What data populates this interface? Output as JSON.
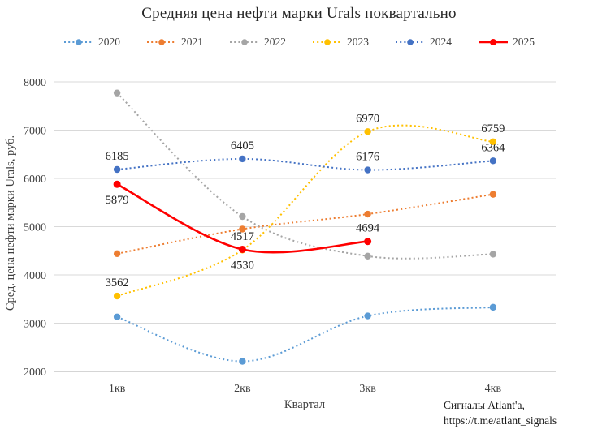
{
  "source": {
    "line1": "Сигналы Atlant'a,",
    "line2": "https://t.me/atlant_signals"
  },
  "chart_data": {
    "type": "line",
    "title": "Средняя цена нефти марки Urals поквартально",
    "xlabel": "Квартал",
    "ylabel": "Сред. цена нефти марки Urals, руб.",
    "categories": [
      "1кв",
      "2кв",
      "3кв",
      "4кв"
    ],
    "ylim": [
      2000,
      8000
    ],
    "y_ticks": [
      2000,
      3000,
      4000,
      5000,
      6000,
      7000,
      8000
    ],
    "grid": true,
    "legend_position": "top",
    "line_smoothing": true,
    "colors": {
      "gridline": "#D9D9D9",
      "axis_line": "#ABABAB",
      "tick_text": "#404040",
      "data_label_text": "#1f1f1f"
    },
    "series": [
      {
        "name": "2020",
        "color": "#5B9BD5",
        "style": "dotted",
        "values": [
          3130,
          2210,
          3150,
          3330
        ],
        "labels": null
      },
      {
        "name": "2021",
        "color": "#ED7D31",
        "style": "dotted",
        "values": [
          4440,
          4950,
          5260,
          5670
        ],
        "labels": null
      },
      {
        "name": "2022",
        "color": "#A5A5A5",
        "style": "dotted",
        "values": [
          7770,
          5210,
          4390,
          4430
        ],
        "labels": null
      },
      {
        "name": "2023",
        "color": "#FFC000",
        "style": "dotted",
        "values": [
          3562,
          4517,
          6970,
          6759
        ],
        "labels": [
          {
            "t": "3562",
            "p": "above"
          },
          {
            "t": "4517",
            "p": "above"
          },
          {
            "t": "6970",
            "p": "above"
          },
          {
            "t": "6759",
            "p": "above"
          }
        ]
      },
      {
        "name": "2024",
        "color": "#4472C4",
        "style": "dotted",
        "values": [
          6185,
          6405,
          6176,
          6364
        ],
        "labels": [
          {
            "t": "6185",
            "p": "above"
          },
          {
            "t": "6405",
            "p": "above"
          },
          {
            "t": "6176",
            "p": "above"
          },
          {
            "t": "6364",
            "p": "above"
          }
        ]
      },
      {
        "name": "2025",
        "color": "#FF0000",
        "style": "solid",
        "values": [
          5879,
          4530,
          4694
        ],
        "labels": [
          {
            "t": "5879",
            "p": "below"
          },
          {
            "t": "4530",
            "p": "below"
          },
          {
            "t": "4694",
            "p": "above"
          }
        ]
      }
    ]
  }
}
